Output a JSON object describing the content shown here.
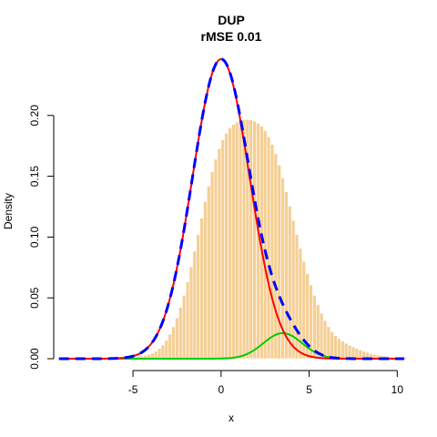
{
  "chart_data": {
    "type": "histogram",
    "title": "DUP",
    "subtitle": "rMSE 0.01",
    "xlabel": "x",
    "ylabel": "Density",
    "xlim": [
      -9.5,
      10.5
    ],
    "ylim": [
      0,
      0.25
    ],
    "x_ticks": [
      -5,
      0,
      5,
      10
    ],
    "y_ticks": [
      0.0,
      0.05,
      0.1,
      0.15,
      0.2
    ],
    "histogram": {
      "bin_start": -9.4,
      "bin_width": 0.2,
      "color": "#f5cf95",
      "densities": [
        0.0001,
        0.0001,
        0.0001,
        0.0001,
        0.0001,
        0.0001,
        0.0001,
        0.0001,
        0.0001,
        0.0001,
        0.0001,
        0.0001,
        0.0002,
        0.0002,
        0.0003,
        0.0004,
        0.0005,
        0.0006,
        0.0007,
        0.0009,
        0.0011,
        0.0013,
        0.0016,
        0.0019,
        0.0023,
        0.0028,
        0.0035,
        0.0046,
        0.0062,
        0.0084,
        0.0113,
        0.0152,
        0.0201,
        0.0262,
        0.0335,
        0.0422,
        0.0521,
        0.0632,
        0.0754,
        0.0884,
        0.1019,
        0.1156,
        0.1291,
        0.1419,
        0.1537,
        0.164,
        0.1728,
        0.1799,
        0.1854,
        0.1896,
        0.1926,
        0.1946,
        0.1959,
        0.1966,
        0.1967,
        0.1963,
        0.1953,
        0.1936,
        0.1911,
        0.1875,
        0.1826,
        0.1762,
        0.1684,
        0.1591,
        0.1486,
        0.1373,
        0.1255,
        0.1137,
        0.102,
        0.0907,
        0.08,
        0.07,
        0.0607,
        0.0521,
        0.0443,
        0.0374,
        0.0314,
        0.0263,
        0.0222,
        0.0189,
        0.0164,
        0.0144,
        0.0127,
        0.0111,
        0.0097,
        0.0084,
        0.0072,
        0.0061,
        0.0052,
        0.0043,
        0.0036,
        0.003,
        0.0025,
        0.0021,
        0.0018,
        0.0015,
        0.0012,
        0.001,
        0.0009,
        0.0008
      ]
    },
    "series": [
      {
        "color": "#ff0000",
        "style": "solid",
        "component": "main",
        "mean": 0,
        "sd": 1.62,
        "weight": 1.0
      },
      {
        "color": "#00cd00",
        "style": "solid",
        "component": "secondary",
        "mean": 3.5,
        "sd": 1.1,
        "weight": 0.058
      },
      {
        "color": "#0000ff",
        "style": "dashed",
        "component": "mixture",
        "mean": null,
        "sd": null,
        "weight": null
      }
    ]
  }
}
